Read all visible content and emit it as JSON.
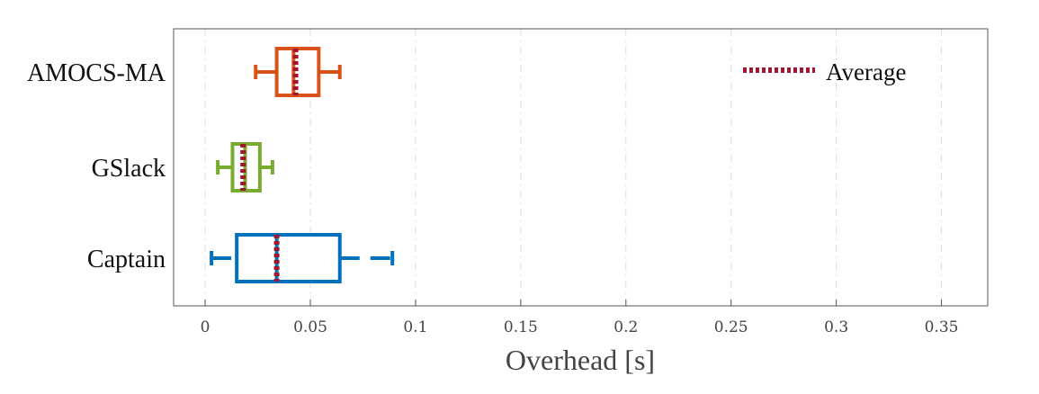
{
  "chart_data": {
    "type": "boxplot",
    "orientation": "horizontal",
    "xlabel": "Overhead [s]",
    "xlim": [
      -0.015,
      0.372
    ],
    "xticks": [
      0,
      0.05,
      0.1,
      0.15,
      0.2,
      0.25,
      0.3,
      0.35
    ],
    "xtick_labels": [
      "0",
      "0.05",
      "0.1",
      "0.15",
      "0.2",
      "0.25",
      "0.3",
      "0.35"
    ],
    "grid": true,
    "legend": {
      "label": "Average",
      "color": "#a2142f",
      "style": "dotted",
      "position": "top-right"
    },
    "categories": [
      "AMOCS-MA",
      "GSlack",
      "Captain"
    ],
    "boxes": [
      {
        "label": "AMOCS-MA",
        "color": "#d95319",
        "whisker_low": 0.024,
        "q1": 0.034,
        "median": 0.042,
        "q3": 0.054,
        "whisker_high": 0.064,
        "mean": 0.043
      },
      {
        "label": "GSlack",
        "color": "#77ac30",
        "whisker_low": 0.006,
        "q1": 0.013,
        "median": 0.019,
        "q3": 0.026,
        "whisker_high": 0.032,
        "mean": 0.018
      },
      {
        "label": "Captain",
        "color": "#0072bd",
        "whisker_low": 0.003,
        "q1": 0.015,
        "median": 0.034,
        "q3": 0.064,
        "whisker_high": 0.089,
        "mean": 0.034
      }
    ]
  }
}
